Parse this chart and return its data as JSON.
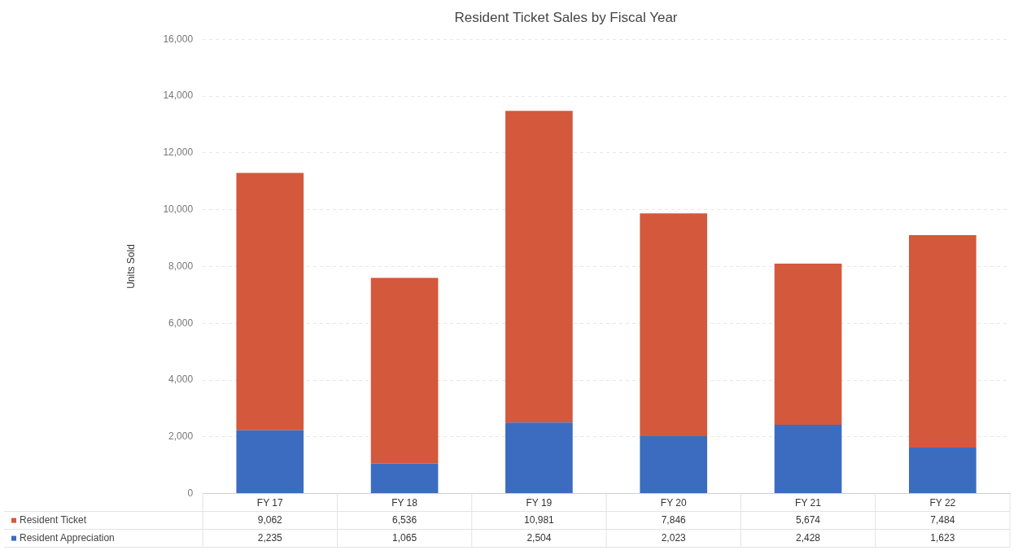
{
  "chart_data": {
    "type": "bar",
    "title": "Resident Ticket Sales by Fiscal Year",
    "ylabel": "Units Sold",
    "categories": [
      "FY 17",
      "FY 18",
      "FY 19",
      "FY 20",
      "FY 21",
      "FY 22"
    ],
    "stacked": true,
    "series": [
      {
        "name": "Resident Appreciation",
        "color": "#3b6cc0",
        "values": [
          2235,
          1065,
          2504,
          2023,
          2428,
          1623
        ],
        "value_labels": [
          "2,235",
          "1,065",
          "2,504",
          "2,023",
          "2,428",
          "1,623"
        ]
      },
      {
        "name": "Resident Ticket",
        "color": "#d4583c",
        "values": [
          9062,
          6536,
          10981,
          7846,
          5674,
          7484
        ],
        "value_labels": [
          "9,062",
          "6,536",
          "10,981",
          "7,846",
          "5,674",
          "7,484"
        ]
      }
    ],
    "ylim": [
      0,
      16000
    ],
    "yticks": [
      0,
      {
        "value": 2000,
        "label": "2,000"
      },
      {
        "value": 4000,
        "label": "4,000"
      },
      {
        "value": 6000,
        "label": "6,000"
      },
      {
        "value": 8000,
        "label": "8,000"
      },
      {
        "value": 10000,
        "label": "10,000"
      },
      {
        "value": 12000,
        "label": "12,000"
      },
      {
        "value": 14000,
        "label": "14,000"
      },
      {
        "value": 16000,
        "label": "16,000"
      }
    ],
    "grid": "y",
    "legend": "bottom"
  }
}
